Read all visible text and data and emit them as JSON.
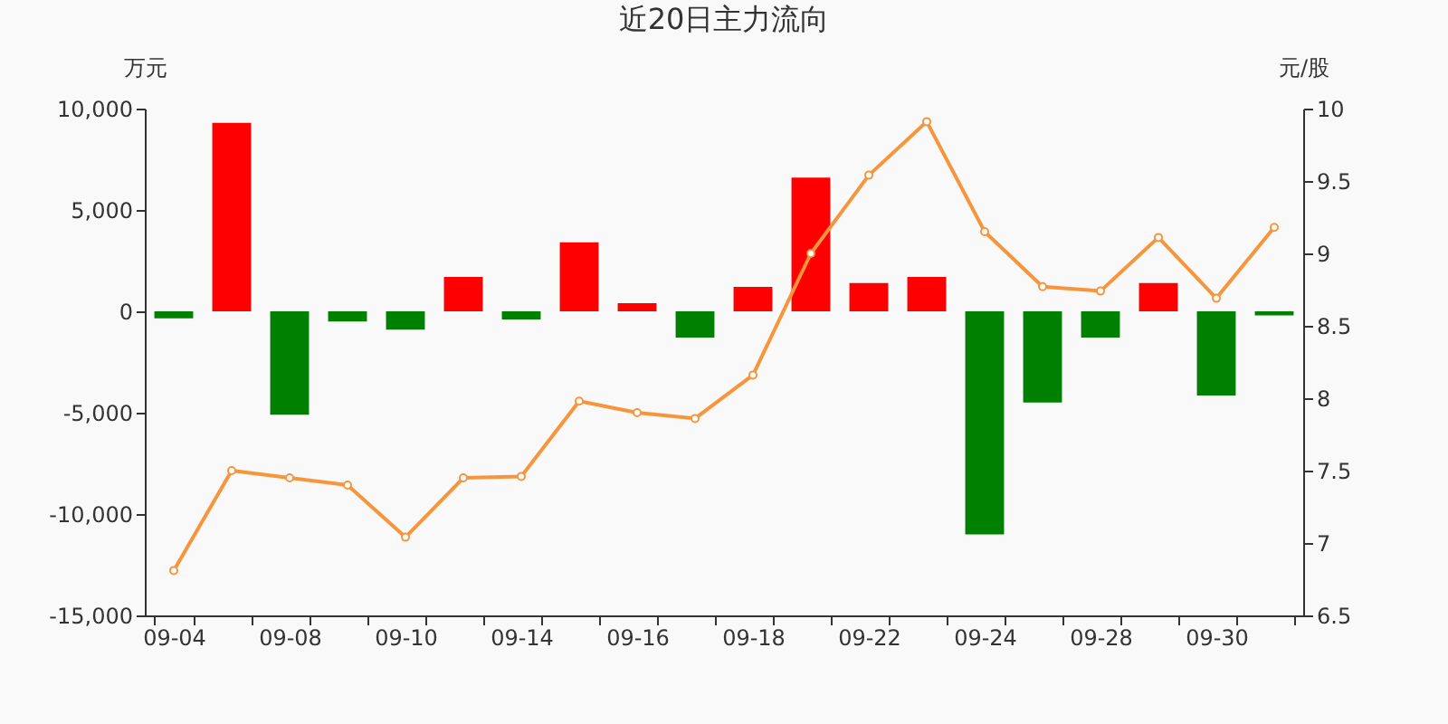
{
  "chart_data": {
    "type": "bar",
    "title": "近20日主力流向",
    "ylabel": "万元",
    "y2label": "元/股",
    "categories": [
      "09-04",
      null,
      "09-08",
      null,
      "09-10",
      null,
      "09-14",
      null,
      "09-16",
      null,
      "09-18",
      null,
      "09-22",
      null,
      "09-24",
      null,
      "09-28",
      null,
      "09-30",
      null
    ],
    "series": [
      {
        "colors": [
          "#008000",
          "#ff0000",
          "#008000",
          "#008000",
          "#008000",
          "#ff0000",
          "#008000",
          "#ff0000",
          "#ff0000",
          "#008000",
          "#ff0000",
          "#ff0000",
          "#ff0000",
          "#ff0000",
          "#008000",
          "#008000",
          "#008000",
          "#ff0000",
          "#008000",
          "#008000"
        ],
        "values": [
          -350,
          9300,
          -5100,
          -500,
          -900,
          1700,
          -400,
          3400,
          400,
          -1300,
          1200,
          6600,
          1400,
          1700,
          -11000,
          -4500,
          -1300,
          1400,
          -4150,
          -200
        ]
      },
      {
        "type": "line",
        "axis": "y2",
        "color": "#f7953d",
        "values": [
          6.81,
          7.5,
          7.45,
          7.4,
          7.04,
          7.45,
          7.46,
          7.98,
          7.9,
          7.86,
          8.16,
          9.0,
          9.54,
          9.91,
          9.15,
          8.77,
          8.74,
          9.11,
          8.69,
          9.18
        ]
      }
    ],
    "ylim": [
      -15000,
      10000
    ],
    "yticks": [
      {
        "value": -15000,
        "label": "-15,000"
      },
      {
        "value": -10000,
        "label": "-10,000"
      },
      {
        "value": -5000,
        "label": "-5,000"
      },
      0,
      {
        "value": 5000,
        "label": "5,000"
      },
      {
        "value": 10000,
        "label": "10,000"
      }
    ],
    "y2lim": [
      6.5,
      10
    ],
    "y2ticks": [
      6.5,
      7,
      7.5,
      8,
      8.5,
      9,
      9.5,
      10
    ],
    "grid": false,
    "marker": "circle"
  }
}
